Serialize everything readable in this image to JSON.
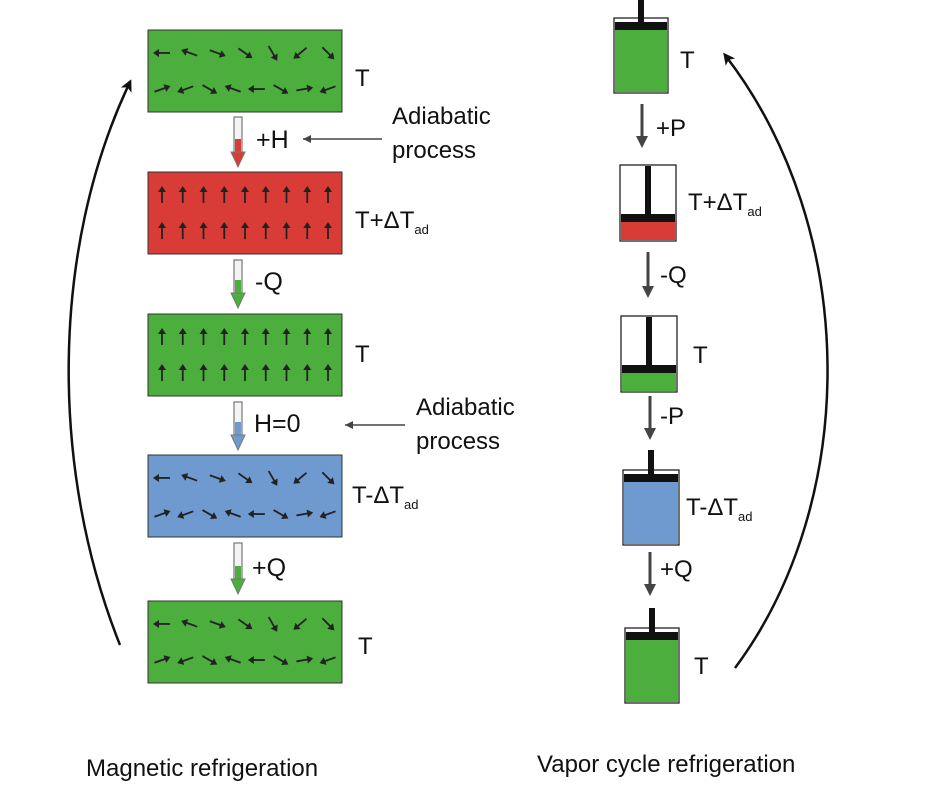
{
  "colors": {
    "green": "#4cae3d",
    "red": "#d93c36",
    "blue": "#6f9ad0",
    "arrow_outline": "#777777",
    "ink": "#111111"
  },
  "magnetic": {
    "caption": "Magnetic refrigeration",
    "states": [
      {
        "color": "green",
        "spins": "random",
        "label": "T",
        "sub": ""
      },
      {
        "color": "red",
        "spins": "aligned",
        "label": "T+ΔT",
        "sub": "ad"
      },
      {
        "color": "green",
        "spins": "aligned",
        "label": "T",
        "sub": ""
      },
      {
        "color": "blue",
        "spins": "random",
        "label": "T-ΔT",
        "sub": "ad"
      },
      {
        "color": "green",
        "spins": "random",
        "label": "T",
        "sub": ""
      }
    ],
    "steps": [
      {
        "label": "+H",
        "tip": "red",
        "note": [
          "Adiabatic",
          "process"
        ]
      },
      {
        "label": "-Q",
        "tip": "green",
        "note": []
      },
      {
        "label": "H=0",
        "tip": "blue",
        "note": [
          "Adiabatic",
          "process"
        ]
      },
      {
        "label": "+Q",
        "tip": "green",
        "note": []
      }
    ]
  },
  "vapor": {
    "caption": "Vapor cycle refrigeration",
    "states": [
      {
        "fill_color": "green",
        "fill_level": 1.0,
        "label": "T",
        "sub": ""
      },
      {
        "fill_color": "red",
        "fill_level": 0.25,
        "label": "T+ΔT",
        "sub": "ad"
      },
      {
        "fill_color": "green",
        "fill_level": 0.25,
        "label": "T",
        "sub": ""
      },
      {
        "fill_color": "blue",
        "fill_level": 1.0,
        "label": "T-ΔT",
        "sub": "ad"
      },
      {
        "fill_color": "green",
        "fill_level": 1.0,
        "label": "T",
        "sub": ""
      }
    ],
    "steps": [
      "+P",
      "-Q",
      "-P",
      "+Q"
    ]
  }
}
